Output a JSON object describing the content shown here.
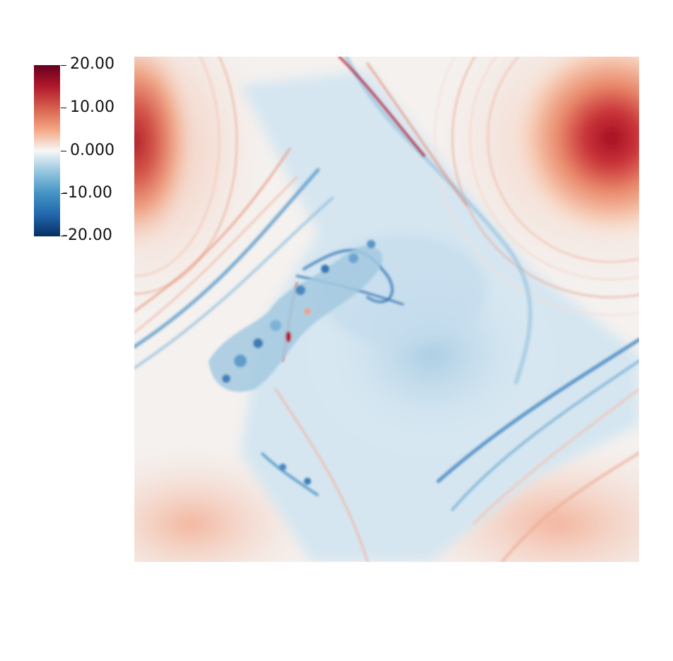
{
  "colorbar": {
    "ticks": [
      "20.00",
      "10.00",
      "0.000",
      "-10.00",
      "-20.00"
    ],
    "colors": [
      "#67001f",
      "#b2182b",
      "#d6604d",
      "#f4a582",
      "#f7f7f7",
      "#92c5de",
      "#4393c3",
      "#2166ac",
      "#053061"
    ]
  },
  "field": {
    "colormap": "diverging red-white-blue",
    "description_icon": "vorticity-field-image"
  }
}
